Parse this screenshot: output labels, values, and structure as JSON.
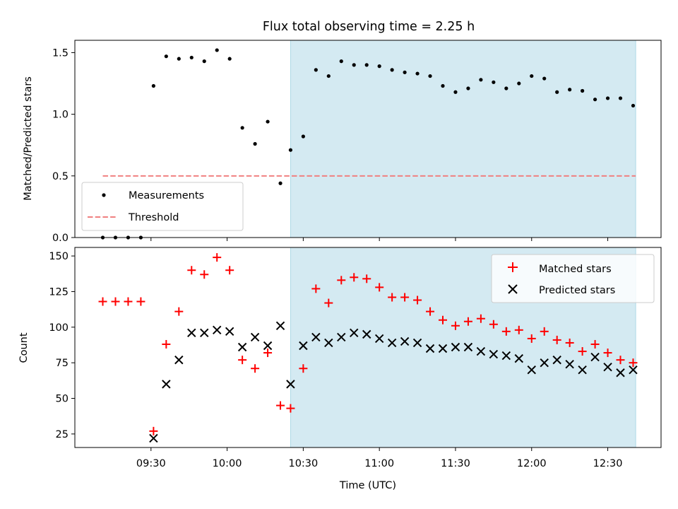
{
  "title": "Flux total observing time = 2.25 h",
  "colors": {
    "measurement": "#000000",
    "threshold": "#f08080",
    "matched": "#ff0000",
    "predicted": "#000000",
    "observing_window": "#add8e6"
  },
  "chart_data": [
    {
      "type": "scatter",
      "panel": "top",
      "ylabel": "Matched/Predicted stars",
      "ylim": [
        0,
        1.6
      ],
      "yticks": [
        0.0,
        0.5,
        1.0,
        1.5
      ],
      "ytick_labels": [
        "0.0",
        "0.5",
        "1.0",
        "1.5"
      ],
      "xlim": [
        "09:00",
        "12:51"
      ],
      "shaded_region": [
        "10:25",
        "12:41"
      ],
      "legend": [
        "Measurements",
        "Threshold"
      ],
      "legend_position": "lower-left",
      "series": [
        {
          "name": "Measurements",
          "marker": "dot",
          "x": [
            "09:11",
            "09:16",
            "09:21",
            "09:26",
            "09:31",
            "09:36",
            "09:41",
            "09:46",
            "09:51",
            "09:56",
            "10:01",
            "10:06",
            "10:11",
            "10:16",
            "10:21",
            "10:25",
            "10:30",
            "10:35",
            "10:40",
            "10:45",
            "10:50",
            "10:55",
            "11:00",
            "11:05",
            "11:10",
            "11:15",
            "11:20",
            "11:25",
            "11:30",
            "11:35",
            "11:40",
            "11:45",
            "11:50",
            "11:55",
            "12:00",
            "12:05",
            "12:10",
            "12:15",
            "12:20",
            "12:25",
            "12:30",
            "12:35",
            "12:40"
          ],
          "y": [
            0.0,
            0.0,
            0.0,
            0.0,
            1.23,
            1.47,
            1.45,
            1.46,
            1.43,
            1.52,
            1.45,
            0.89,
            0.76,
            0.94,
            0.44,
            0.71,
            0.82,
            1.36,
            1.31,
            1.43,
            1.4,
            1.4,
            1.39,
            1.36,
            1.34,
            1.33,
            1.31,
            1.23,
            1.18,
            1.21,
            1.28,
            1.26,
            1.21,
            1.25,
            1.31,
            1.29,
            1.18,
            1.2,
            1.19,
            1.12,
            1.13,
            1.13,
            1.07
          ]
        },
        {
          "name": "Threshold",
          "marker": "dashed-line",
          "x": [
            "09:11",
            "12:41"
          ],
          "y": [
            0.5,
            0.5
          ]
        }
      ]
    },
    {
      "type": "scatter",
      "panel": "bottom",
      "xlabel": "Time (UTC)",
      "ylabel": "Count",
      "ylim": [
        15.5,
        156
      ],
      "yticks": [
        25,
        50,
        75,
        100,
        125,
        150
      ],
      "ytick_labels": [
        "25",
        "50",
        "75",
        "100",
        "125",
        "150"
      ],
      "xlim": [
        "09:00",
        "12:51"
      ],
      "xticks": [
        "09:30",
        "10:00",
        "10:30",
        "11:00",
        "11:30",
        "12:00",
        "12:30"
      ],
      "shaded_region": [
        "10:25",
        "12:41"
      ],
      "legend": [
        "Matched stars",
        "Predicted stars"
      ],
      "legend_position": "top-right",
      "series": [
        {
          "name": "Matched stars",
          "marker": "plus",
          "x": [
            "09:11",
            "09:16",
            "09:21",
            "09:26",
            "09:31",
            "09:36",
            "09:41",
            "09:46",
            "09:51",
            "09:56",
            "10:01",
            "10:06",
            "10:11",
            "10:16",
            "10:21",
            "10:25",
            "10:30",
            "10:35",
            "10:40",
            "10:45",
            "10:50",
            "10:55",
            "11:00",
            "11:05",
            "11:10",
            "11:15",
            "11:20",
            "11:25",
            "11:30",
            "11:35",
            "11:40",
            "11:45",
            "11:50",
            "11:55",
            "12:00",
            "12:05",
            "12:10",
            "12:15",
            "12:20",
            "12:25",
            "12:30",
            "12:35",
            "12:40"
          ],
          "y": [
            118,
            118,
            118,
            118,
            27,
            88,
            111,
            140,
            137,
            149,
            140,
            77,
            71,
            82,
            45,
            43,
            71,
            127,
            117,
            133,
            135,
            134,
            128,
            121,
            121,
            119,
            111,
            105,
            101,
            104,
            106,
            102,
            97,
            98,
            92,
            97,
            91,
            89,
            83,
            88,
            82,
            77,
            75
          ]
        },
        {
          "name": "Predicted stars",
          "marker": "x",
          "x": [
            "09:31",
            "09:36",
            "09:41",
            "09:46",
            "09:51",
            "09:56",
            "10:01",
            "10:06",
            "10:11",
            "10:16",
            "10:21",
            "10:25",
            "10:30",
            "10:35",
            "10:40",
            "10:45",
            "10:50",
            "10:55",
            "11:00",
            "11:05",
            "11:10",
            "11:15",
            "11:20",
            "11:25",
            "11:30",
            "11:35",
            "11:40",
            "11:45",
            "11:50",
            "11:55",
            "12:00",
            "12:05",
            "12:10",
            "12:15",
            "12:20",
            "12:25",
            "12:30",
            "12:35",
            "12:40"
          ],
          "y": [
            22,
            60,
            77,
            96,
            96,
            98,
            97,
            86,
            93,
            87,
            101,
            60,
            87,
            93,
            89,
            93,
            96,
            95,
            92,
            89,
            90,
            89,
            85,
            85,
            86,
            86,
            83,
            81,
            80,
            78,
            70,
            75,
            77,
            74,
            70,
            79,
            72,
            68,
            70
          ]
        }
      ]
    }
  ]
}
